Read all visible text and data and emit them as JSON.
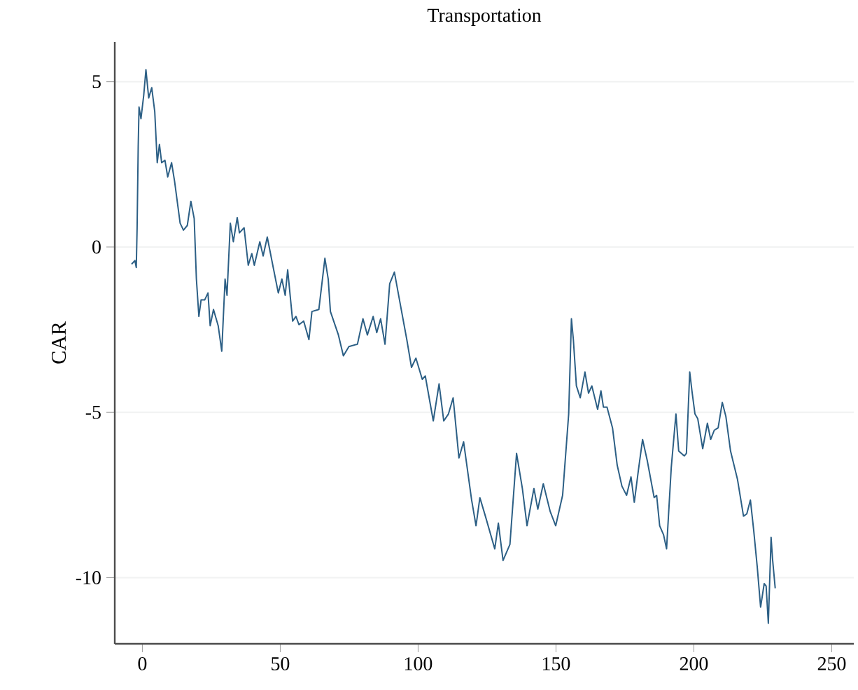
{
  "chart_data": {
    "type": "line",
    "title": "Transportation",
    "ylabel": "CAR",
    "xlim": [
      -10,
      258
    ],
    "ylim": [
      -12,
      6.2
    ],
    "xticks": [
      0,
      50,
      100,
      150,
      200,
      250
    ],
    "yticks": [
      -10,
      -5,
      0,
      5
    ],
    "grid": "y",
    "marker": "none",
    "line_style": "solid",
    "series": [
      {
        "color": "#2c5f85",
        "x": [
          -3.9,
          -2.7,
          -2.2,
          -1.9,
          -1.5,
          -1.2,
          -0.5,
          0.5,
          1.3,
          2.3,
          3.4,
          4.5,
          5.4,
          6.2,
          7.0,
          8.2,
          9.2,
          10.6,
          11.7,
          13.7,
          14.9,
          16.3,
          17.6,
          18.8,
          19.6,
          20.5,
          21.3,
          22.6,
          23.8,
          24.6,
          25.8,
          27.5,
          28.8,
          30.0,
          30.7,
          31.9,
          33.0,
          34.4,
          35.2,
          36.9,
          38.4,
          39.7,
          40.6,
          42.6,
          43.8,
          45.3,
          47.3,
          49.3,
          50.6,
          51.8,
          52.7,
          54.5,
          55.7,
          56.8,
          58.5,
          60.4,
          61.5,
          64.0,
          66.2,
          67.4,
          68.2,
          71.1,
          72.9,
          74.9,
          78.0,
          80.0,
          81.6,
          83.7,
          85.0,
          86.4,
          88.0,
          89.7,
          91.4,
          93.4,
          95.9,
          97.6,
          99.2,
          101.5,
          102.6,
          105.5,
          107.6,
          109.3,
          111.0,
          112.7,
          114.8,
          116.5,
          119.4,
          121.0,
          122.4,
          124.4,
          127.8,
          129.1,
          130.8,
          133.3,
          135.7,
          137.8,
          139.5,
          142.0,
          143.4,
          145.4,
          147.9,
          149.9,
          152.4,
          154.6,
          155.6,
          156.3,
          157.4,
          158.8,
          160.5,
          161.8,
          163.0,
          165.1,
          166.3,
          167.2,
          168.5,
          170.5,
          172.2,
          173.9,
          175.6,
          177.2,
          178.4,
          179.9,
          181.4,
          183.1,
          185.6,
          186.5,
          187.6,
          189.0,
          190.1,
          191.8,
          193.5,
          194.5,
          196.5,
          197.3,
          198.5,
          199.3,
          200.4,
          201.4,
          203.2,
          204.9,
          206.1,
          207.4,
          208.8,
          210.3,
          211.6,
          213.3,
          215.8,
          218.0,
          219.2,
          220.5,
          221.7,
          223.0,
          224.2,
          225.5,
          226.2,
          227.0,
          228.0,
          228.5,
          229.5
        ],
        "values": [
          -0.52,
          -0.41,
          -0.62,
          0.58,
          3.04,
          4.23,
          3.88,
          4.59,
          5.36,
          4.51,
          4.82,
          4.09,
          2.55,
          3.1,
          2.55,
          2.62,
          2.12,
          2.55,
          1.98,
          0.72,
          0.51,
          0.65,
          1.38,
          0.86,
          -0.97,
          -2.1,
          -1.6,
          -1.6,
          -1.39,
          -2.38,
          -1.89,
          -2.38,
          -3.15,
          -0.97,
          -1.46,
          0.72,
          0.16,
          0.89,
          0.43,
          0.58,
          -0.55,
          -0.2,
          -0.55,
          0.16,
          -0.27,
          0.3,
          -0.55,
          -1.39,
          -0.97,
          -1.46,
          -0.69,
          -2.24,
          -2.1,
          -2.35,
          -2.24,
          -2.8,
          -1.95,
          -1.89,
          -0.34,
          -0.97,
          -1.95,
          -2.66,
          -3.29,
          -3.01,
          -2.94,
          -2.17,
          -2.66,
          -2.1,
          -2.59,
          -2.17,
          -2.94,
          -1.11,
          -0.76,
          -1.67,
          -2.8,
          -3.64,
          -3.36,
          -4.0,
          -3.9,
          -5.26,
          -4.14,
          -5.26,
          -5.05,
          -4.56,
          -6.38,
          -5.89,
          -7.65,
          -8.43,
          -7.58,
          -8.14,
          -9.13,
          -8.35,
          -9.48,
          -8.99,
          -6.24,
          -7.3,
          -8.43,
          -7.3,
          -7.93,
          -7.16,
          -8.0,
          -8.43,
          -7.51,
          -5.05,
          -2.17,
          -2.8,
          -4.2,
          -4.56,
          -3.78,
          -4.42,
          -4.2,
          -4.91,
          -4.35,
          -4.84,
          -4.84,
          -5.47,
          -6.6,
          -7.23,
          -7.51,
          -6.95,
          -7.72,
          -6.74,
          -5.82,
          -6.46,
          -7.58,
          -7.51,
          -8.43,
          -8.7,
          -9.13,
          -6.67,
          -5.05,
          -6.17,
          -6.32,
          -6.24,
          -3.78,
          -4.35,
          -5.05,
          -5.19,
          -6.1,
          -5.33,
          -5.82,
          -5.54,
          -5.47,
          -4.7,
          -5.12,
          -6.17,
          -7.02,
          -8.14,
          -8.07,
          -7.65,
          -8.57,
          -9.69,
          -10.89,
          -10.18,
          -10.25,
          -11.38,
          -8.78,
          -9.41,
          -10.32
        ]
      }
    ]
  }
}
